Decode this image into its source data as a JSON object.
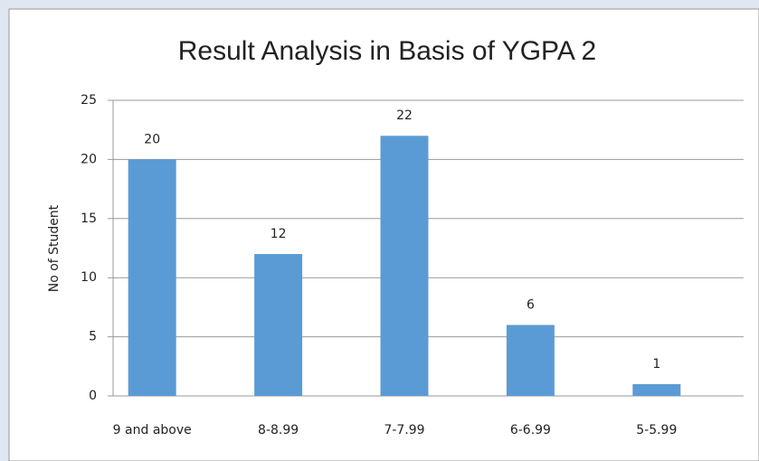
{
  "chart_data": {
    "type": "bar",
    "title": "Result Analysis in Basis of YGPA 2",
    "y_label": "No of Student",
    "categories": [
      "9 and above",
      "8-8.99",
      "7-7.99",
      "6-6.99",
      "5-5.99"
    ],
    "values": [
      20,
      12,
      22,
      6,
      1
    ],
    "color": "#5b9bd5",
    "ylim": [
      0,
      25
    ],
    "yticks": [
      0,
      5,
      10,
      15,
      20,
      25
    ],
    "grid": true
  }
}
